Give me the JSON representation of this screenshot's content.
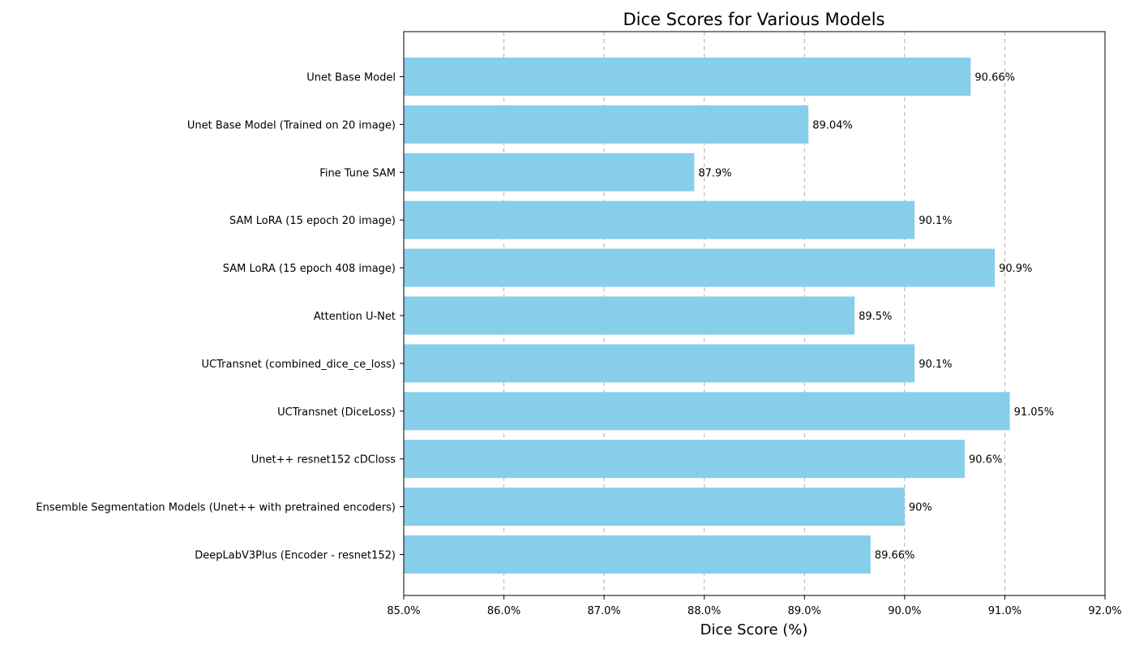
{
  "chart_data": {
    "type": "bar",
    "orientation": "horizontal",
    "title": "Dice Scores for Various Models",
    "xlabel": "Dice Score (%)",
    "ylabel": "",
    "xlim": [
      85.0,
      92.0
    ],
    "xticks": [
      85.0,
      86.0,
      87.0,
      88.0,
      89.0,
      90.0,
      91.0,
      92.0
    ],
    "xtick_labels": [
      "85.0%",
      "86.0%",
      "87.0%",
      "88.0%",
      "89.0%",
      "90.0%",
      "91.0%",
      "92.0%"
    ],
    "grid": "x",
    "bar_color": "#87ceeb",
    "categories": [
      "Unet Base Model",
      "Unet Base Model (Trained on 20 image)",
      "Fine Tune SAM",
      "SAM LoRA (15 epoch 20 image)",
      "SAM LoRA (15 epoch 408 image)",
      "Attention U-Net",
      "UCTransnet (combined_dice_ce_loss)",
      "UCTransnet (DiceLoss)",
      "Unet++ resnet152 cDCloss",
      "Ensemble Segmentation Models (Unet++ with pretrained encoders)",
      "DeepLabV3Plus (Encoder - resnet152)"
    ],
    "values": [
      90.66,
      89.04,
      87.9,
      90.1,
      90.9,
      89.5,
      90.1,
      91.05,
      90.6,
      90.0,
      89.66
    ],
    "value_labels": [
      "90.66%",
      "89.04%",
      "87.9%",
      "90.1%",
      "90.9%",
      "89.5%",
      "90.1%",
      "91.05%",
      "90.6%",
      "90%",
      "89.66%"
    ]
  }
}
